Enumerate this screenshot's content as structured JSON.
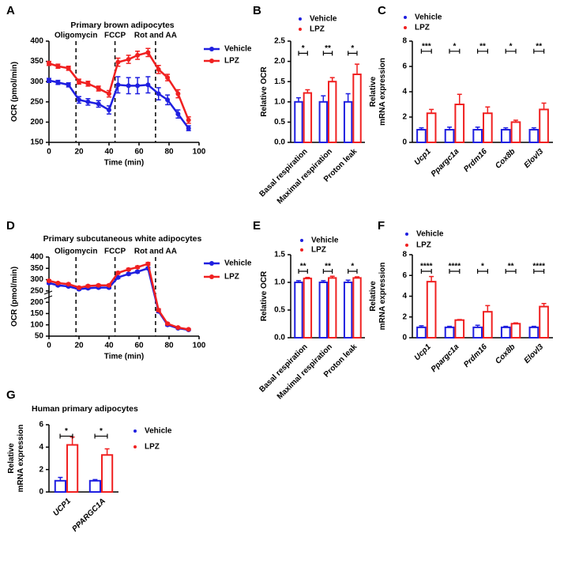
{
  "chart_data": [
    {
      "type": "line",
      "panel": "A",
      "title": "Primary brown adipocytes",
      "xlabel": "Time (min)",
      "ylabel": [
        "OCR (pmol/min)"
      ],
      "x": [
        0,
        6,
        13,
        20,
        26,
        33,
        40,
        46,
        53,
        59,
        66,
        73,
        79,
        86,
        93
      ],
      "series": [
        {
          "name": "Vehicle",
          "color": "#1f1fe0",
          "values": [
            303,
            298,
            292,
            255,
            250,
            245,
            230,
            292,
            290,
            290,
            292,
            270,
            255,
            220,
            185
          ],
          "errors": [
            5,
            5,
            5,
            8,
            8,
            8,
            10,
            20,
            20,
            20,
            20,
            15,
            12,
            10,
            6
          ]
        },
        {
          "name": "LPZ",
          "color": "#f02020",
          "values": [
            345,
            338,
            333,
            300,
            295,
            283,
            270,
            348,
            355,
            365,
            372,
            330,
            310,
            270,
            205
          ],
          "errors": [
            5,
            5,
            5,
            6,
            6,
            6,
            8,
            10,
            10,
            10,
            10,
            10,
            8,
            10,
            8
          ]
        }
      ],
      "annotations": [
        {
          "text": "Oligomycin",
          "x": 18
        },
        {
          "text": "FCCP",
          "x": 44
        },
        {
          "text": "Rot and AA",
          "x": 71
        }
      ],
      "xlim": [
        0,
        100
      ],
      "xticks": [
        0,
        20,
        40,
        60,
        80,
        100
      ],
      "ylim": [
        150,
        400
      ],
      "yticks": [
        150,
        200,
        250,
        300,
        350,
        400
      ]
    },
    {
      "type": "bar",
      "panel": "B",
      "ylabel": [
        "Relative OCR"
      ],
      "categories": [
        "Basal respiration",
        "Maximal respiration",
        "Proton leak"
      ],
      "series": [
        {
          "name": "Vehicle",
          "color": "#1f1fe0",
          "values": [
            1,
            1,
            1
          ],
          "errors": [
            0.1,
            0.15,
            0.2
          ]
        },
        {
          "name": "LPZ",
          "color": "#f02020",
          "values": [
            1.22,
            1.5,
            1.68
          ],
          "errors": [
            0.08,
            0.1,
            0.25
          ]
        }
      ],
      "significance": [
        "*",
        "**",
        "*"
      ],
      "ylim": [
        0,
        2.5
      ],
      "yticks": [
        {
          "value": 0,
          "label": "0.0"
        },
        0.5,
        {
          "value": 1,
          "label": "1.0"
        },
        1.5,
        {
          "value": 2,
          "label": "2.0"
        },
        2.5
      ]
    },
    {
      "type": "bar",
      "panel": "C",
      "ylabel": [
        "Relative",
        "mRNA expression"
      ],
      "categories": [
        "Ucp1",
        "Ppargc1a",
        "Prdm16",
        "Cox8b",
        "Elovl3"
      ],
      "series": [
        {
          "name": "Vehicle",
          "color": "#1f1fe0",
          "values": [
            1,
            1,
            1,
            1,
            1
          ],
          "errors": [
            0.15,
            0.2,
            0.2,
            0.15,
            0.15
          ]
        },
        {
          "name": "LPZ",
          "color": "#f02020",
          "values": [
            2.3,
            3.0,
            2.3,
            1.6,
            2.6
          ],
          "errors": [
            0.3,
            0.8,
            0.5,
            0.15,
            0.5
          ]
        }
      ],
      "significance": [
        "***",
        "*",
        "**",
        "*",
        "**"
      ],
      "ylim": [
        0,
        8
      ],
      "yticks": [
        0,
        2,
        4,
        6,
        8
      ]
    },
    {
      "type": "line",
      "panel": "D",
      "title": "Primary subcutaneous white adipocytes",
      "xlabel": "Time (min)",
      "ylabel": [
        "OCR (pmol/min)"
      ],
      "x": [
        0,
        6,
        13,
        20,
        26,
        33,
        40,
        46,
        53,
        59,
        66,
        73,
        79,
        86,
        93
      ],
      "series": [
        {
          "name": "Vehicle",
          "color": "#1f1fe0",
          "values": [
            285,
            275,
            270,
            258,
            262,
            265,
            265,
            310,
            325,
            335,
            350,
            160,
            100,
            85,
            78
          ],
          "errors": [
            4,
            4,
            4,
            4,
            4,
            4,
            4,
            5,
            5,
            5,
            5,
            6,
            4,
            3,
            3
          ]
        },
        {
          "name": "LPZ",
          "color": "#f02020",
          "values": [
            295,
            285,
            280,
            265,
            272,
            275,
            275,
            330,
            345,
            355,
            370,
            165,
            105,
            88,
            80
          ],
          "errors": [
            4,
            4,
            4,
            4,
            4,
            4,
            4,
            5,
            5,
            5,
            6,
            6,
            4,
            3,
            3
          ]
        }
      ],
      "annotations": [
        {
          "text": "Oligomycin",
          "x": 18
        },
        {
          "text": "FCCP",
          "x": 44
        },
        {
          "text": "Rot and AA",
          "x": 71
        }
      ],
      "xlim": [
        0,
        100
      ],
      "xticks": [
        0,
        20,
        40,
        60,
        80,
        100
      ],
      "ylim": [
        50,
        400
      ],
      "yticks": [
        50,
        100,
        150,
        200,
        250,
        300,
        350,
        400
      ]
    },
    {
      "type": "bar",
      "panel": "E",
      "ylabel": [
        "Relative OCR"
      ],
      "categories": [
        "Basal respiration",
        "Maximal respiration",
        "Proton leak"
      ],
      "series": [
        {
          "name": "Vehicle",
          "color": "#1f1fe0",
          "values": [
            1,
            1,
            1
          ],
          "errors": [
            0.03,
            0.03,
            0.04
          ]
        },
        {
          "name": "LPZ",
          "color": "#f02020",
          "values": [
            1.07,
            1.08,
            1.08
          ],
          "errors": [
            0.02,
            0.03,
            0.02
          ]
        }
      ],
      "significance": [
        "**",
        "**",
        "*"
      ],
      "ylim": [
        0,
        1.5
      ],
      "yticks": [
        {
          "value": 0,
          "label": "0.0"
        },
        0.5,
        {
          "value": 1,
          "label": "1.0"
        },
        1.5
      ]
    },
    {
      "type": "bar",
      "panel": "F",
      "ylabel": [
        "Relative",
        "mRNA expression"
      ],
      "categories": [
        "Ucp1",
        "Ppargc1a",
        "Prdm16",
        "Cox8b",
        "Elovl3"
      ],
      "series": [
        {
          "name": "Vehicle",
          "color": "#1f1fe0",
          "values": [
            1,
            1,
            1,
            1,
            1
          ],
          "errors": [
            0.15,
            0.1,
            0.2,
            0.1,
            0.1
          ]
        },
        {
          "name": "LPZ",
          "color": "#f02020",
          "values": [
            5.4,
            1.7,
            2.5,
            1.35,
            3.0
          ],
          "errors": [
            0.5,
            0.05,
            0.6,
            0.08,
            0.3
          ]
        }
      ],
      "significance": [
        "****",
        "****",
        "*",
        "**",
        "****"
      ],
      "ylim": [
        0,
        8
      ],
      "yticks": [
        0,
        2,
        4,
        6,
        8
      ]
    },
    {
      "type": "bar",
      "panel": "G",
      "title": "Human primary adipocytes",
      "ylabel": [
        "Relative",
        "mRNA expression"
      ],
      "categories": [
        "UCP1",
        "PPARGC1A"
      ],
      "series": [
        {
          "name": "Vehicle",
          "color": "#1f1fe0",
          "values": [
            1,
            1
          ],
          "errors": [
            0.3,
            0.1
          ]
        },
        {
          "name": "LPZ",
          "color": "#f02020",
          "values": [
            4.2,
            3.3
          ],
          "errors": [
            0.7,
            0.55
          ]
        }
      ],
      "significance": [
        "*",
        "*"
      ],
      "ylim": [
        0,
        6
      ],
      "yticks": [
        0,
        2,
        4,
        6
      ]
    }
  ]
}
